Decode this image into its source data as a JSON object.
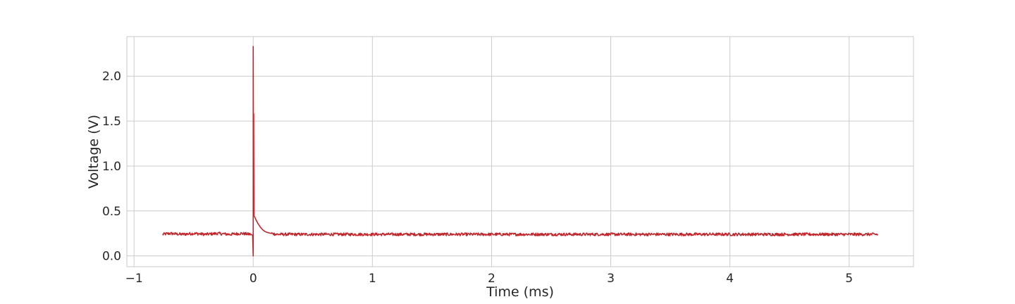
{
  "chart_data": {
    "type": "line",
    "title": "",
    "xlabel": "Time (ms)",
    "ylabel": "Voltage (V)",
    "xlim": [
      -1.06,
      5.54
    ],
    "ylim": [
      -0.12,
      2.44
    ],
    "xticks": [
      -1,
      0,
      1,
      2,
      3,
      4,
      5
    ],
    "xtick_labels": [
      "−1",
      "0",
      "1",
      "2",
      "3",
      "4",
      "5"
    ],
    "yticks": [
      0.0,
      0.5,
      1.0,
      1.5,
      2.0
    ],
    "ytick_labels": [
      "0.0",
      "0.5",
      "1.0",
      "1.5",
      "2.0"
    ],
    "grid": true,
    "legend": "none",
    "series": [
      {
        "color": "#c0282d",
        "x": [
          -0.76,
          -0.7,
          -0.6,
          -0.5,
          -0.4,
          -0.3,
          -0.2,
          -0.1,
          -0.02,
          -0.005,
          0.0,
          0.0,
          0.002,
          0.004,
          0.004,
          0.006,
          0.01,
          0.02,
          0.04,
          0.06,
          0.08,
          0.1,
          0.12,
          0.15,
          0.2,
          0.3,
          0.5,
          0.8,
          1.0,
          1.5,
          2.0,
          2.5,
          3.0,
          3.5,
          4.0,
          4.5,
          5.0,
          5.24
        ],
        "y": [
          0.24,
          0.25,
          0.24,
          0.25,
          0.24,
          0.25,
          0.24,
          0.25,
          0.24,
          0.23,
          0.0,
          2.33,
          1.2,
          0.5,
          1.58,
          0.45,
          0.44,
          0.41,
          0.36,
          0.32,
          0.29,
          0.27,
          0.26,
          0.25,
          0.24,
          0.24,
          0.24,
          0.24,
          0.24,
          0.24,
          0.24,
          0.24,
          0.24,
          0.24,
          0.24,
          0.24,
          0.24,
          0.24
        ]
      }
    ]
  }
}
